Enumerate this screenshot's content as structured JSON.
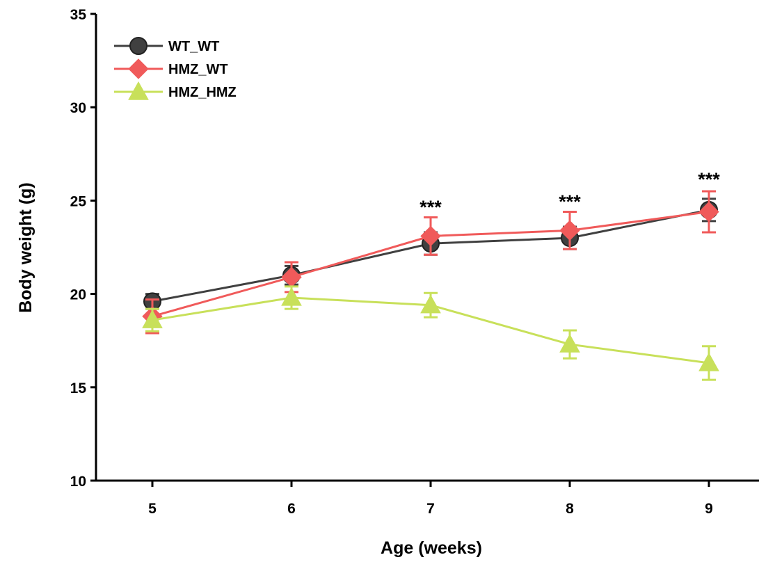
{
  "chart_data": {
    "type": "line",
    "xlabel": "Age (weeks)",
    "ylabel": "Body weight (g)",
    "x": [
      5,
      6,
      7,
      8,
      9
    ],
    "x_tick_labels": [
      "5",
      "6",
      "7",
      "8",
      "9"
    ],
    "ylim": [
      10,
      35
    ],
    "y_ticks": [
      10,
      15,
      20,
      25,
      30,
      35
    ],
    "y_tick_labels": [
      "10",
      "15",
      "20",
      "25",
      "30",
      "35"
    ],
    "grid": false,
    "legend_position": "top-left",
    "series": [
      {
        "name": "WT_WT",
        "marker": "circle",
        "color": "#404040",
        "values": [
          19.6,
          21.0,
          22.7,
          23.0,
          24.5
        ],
        "errors": [
          0.4,
          0.5,
          0.6,
          0.6,
          0.6
        ]
      },
      {
        "name": "HMZ_WT",
        "marker": "diamond",
        "color": "#f05a5a",
        "values": [
          18.8,
          20.9,
          23.1,
          23.4,
          24.4
        ],
        "errors": [
          0.9,
          0.8,
          1.0,
          1.0,
          1.1
        ]
      },
      {
        "name": "HMZ_HMZ",
        "marker": "triangle",
        "color": "#c8e05a",
        "values": [
          18.6,
          19.8,
          19.4,
          17.3,
          16.3
        ],
        "errors": [
          0.6,
          0.6,
          0.65,
          0.75,
          0.9
        ]
      }
    ],
    "annotations": [
      {
        "x": 7,
        "text": "***",
        "y": 24.3
      },
      {
        "x": 8,
        "text": "***",
        "y": 24.6
      },
      {
        "x": 9,
        "text": "***",
        "y": 25.8
      }
    ]
  }
}
